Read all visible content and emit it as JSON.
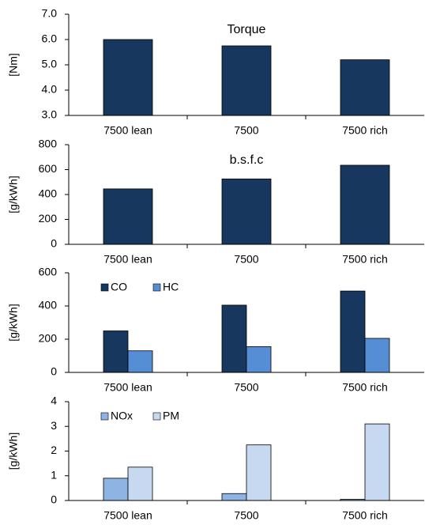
{
  "chart_data": [
    {
      "type": "bar",
      "title": "Torque",
      "y_label": "[Nm]",
      "categories": [
        "7500 lean",
        "7500",
        "7500 rich"
      ],
      "values": [
        6.0,
        5.75,
        5.2
      ],
      "color": "#17375e",
      "ylim": [
        3,
        7
      ],
      "yticks": [
        {
          "value": 3,
          "label": "3.0"
        },
        {
          "value": 4,
          "label": "4.0"
        },
        {
          "value": 5,
          "label": "5.0"
        },
        {
          "value": 6,
          "label": "6.0"
        },
        {
          "value": 7,
          "label": "7.0"
        }
      ]
    },
    {
      "type": "bar",
      "title": "b.s.f.c",
      "y_label": "[g/kWh]",
      "categories": [
        "7500 lean",
        "7500",
        "7500 rich"
      ],
      "values": [
        445,
        525,
        635
      ],
      "color": "#17375e",
      "ylim": [
        0,
        800
      ],
      "yticks": [
        0,
        200,
        400,
        600,
        800
      ]
    },
    {
      "type": "grouped_bar",
      "y_label": "[g/kWh]",
      "legend": "upper left",
      "categories": [
        "7500 lean",
        "7500",
        "7500 rich"
      ],
      "series": [
        {
          "name": "CO",
          "color": "#17375e",
          "values": [
            250,
            405,
            490
          ]
        },
        {
          "name": "HC",
          "color": "#558ed5",
          "values": [
            130,
            155,
            205
          ]
        }
      ],
      "ylim": [
        0,
        600
      ],
      "yticks": [
        0,
        200,
        400,
        600
      ]
    },
    {
      "type": "grouped_bar",
      "y_label": "[g/kWh]",
      "legend": "upper left",
      "categories": [
        "7500 lean",
        "7500",
        "7500 rich"
      ],
      "series": [
        {
          "name": "NOx",
          "color": "#8eb4e3",
          "values": [
            0.9,
            0.28,
            0.05
          ]
        },
        {
          "name": "PM",
          "color": "#c6d9f1",
          "values": [
            1.35,
            2.25,
            3.1
          ]
        }
      ],
      "ylim": [
        0,
        4
      ],
      "yticks": [
        0,
        1,
        2,
        3,
        4
      ]
    }
  ]
}
